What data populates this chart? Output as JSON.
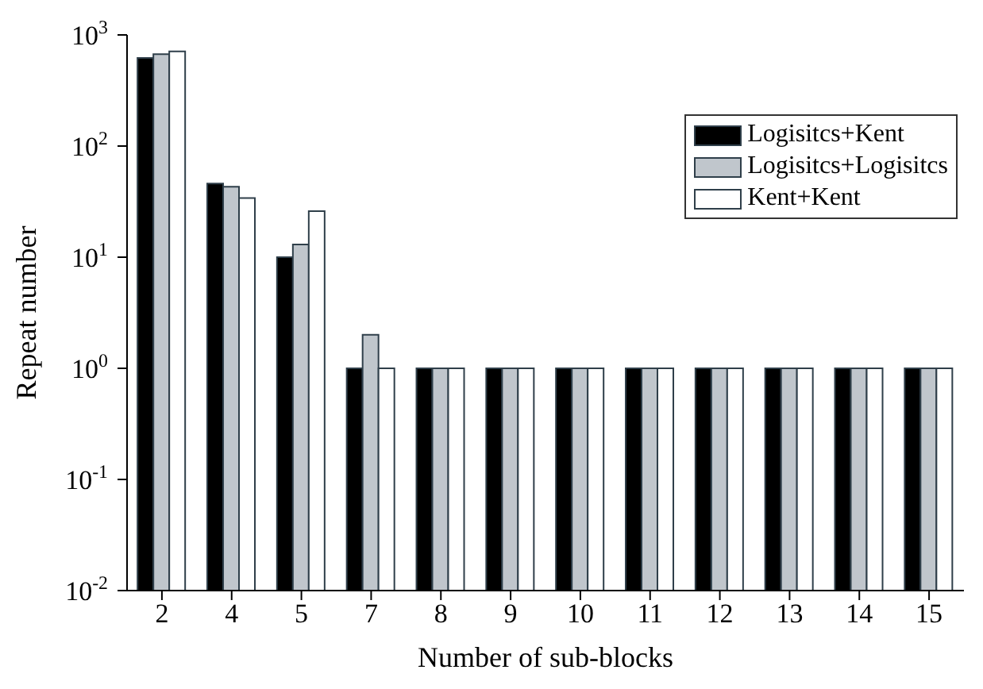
{
  "chart_data": {
    "type": "bar",
    "xlabel": "Number of sub-blocks",
    "ylabel": "Repeat number",
    "categories": [
      "2",
      "4",
      "5",
      "7",
      "8",
      "9",
      "10",
      "11",
      "12",
      "13",
      "14",
      "15"
    ],
    "series": [
      {
        "name": "Logisitcs+Kent",
        "color": "#000000",
        "values": [
          620,
          46,
          10,
          1,
          1,
          1,
          1,
          1,
          1,
          1,
          1,
          1
        ]
      },
      {
        "name": "Logisitcs+Logisitcs",
        "color": "#c0c6cc",
        "values": [
          670,
          43,
          13,
          2,
          1,
          1,
          1,
          1,
          1,
          1,
          1,
          1
        ]
      },
      {
        "name": "Kent+Kent",
        "color": "#ffffff",
        "values": [
          710,
          34,
          26,
          1,
          1,
          1,
          1,
          1,
          1,
          1,
          1,
          1
        ]
      }
    ],
    "log": true,
    "ylim": [
      0.01,
      1000
    ],
    "yticks": [
      {
        "value": 0.01,
        "label": "10$^{-2}$"
      },
      {
        "value": 0.1,
        "label": "10$^{-1}$"
      },
      {
        "value": 1,
        "label": "10$^{0}$"
      },
      {
        "value": 10,
        "label": "10$^{1}$"
      },
      {
        "value": 100,
        "label": "10$^{2}$"
      },
      {
        "value": 1000,
        "label": "10$^{3}$"
      }
    ],
    "legend": "top right",
    "grid": false
  }
}
